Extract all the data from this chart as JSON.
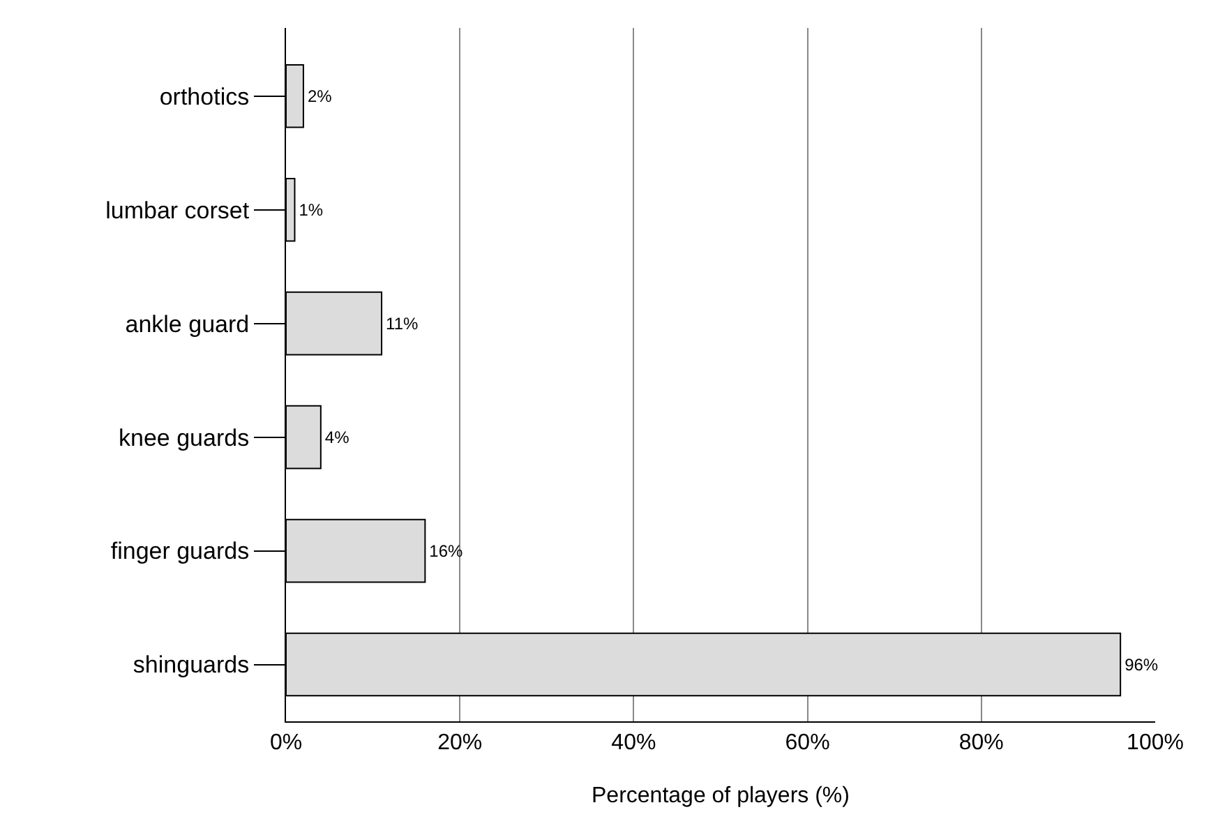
{
  "chart_data": {
    "type": "bar",
    "orientation": "horizontal",
    "xlabel": "Percentage of players (%)",
    "categories": [
      "orthotics",
      "lumbar corset",
      "ankle guard",
      "knee guards",
      "finger guards",
      "shinguards"
    ],
    "values": [
      2,
      1,
      11,
      4,
      16,
      96
    ],
    "value_labels": [
      "2%",
      "1%",
      "11%",
      "4%",
      "16%",
      "96%"
    ],
    "color": "#dcdcdc",
    "xlim": [
      0,
      100
    ],
    "xticks": [
      {
        "value": 0,
        "label": "0%"
      },
      {
        "value": 20,
        "label": "20%"
      },
      {
        "value": 40,
        "label": "40%"
      },
      {
        "value": 60,
        "label": "60%"
      },
      {
        "value": 80,
        "label": "80%"
      },
      {
        "value": 100,
        "label": "100%"
      }
    ],
    "grid": "x"
  }
}
